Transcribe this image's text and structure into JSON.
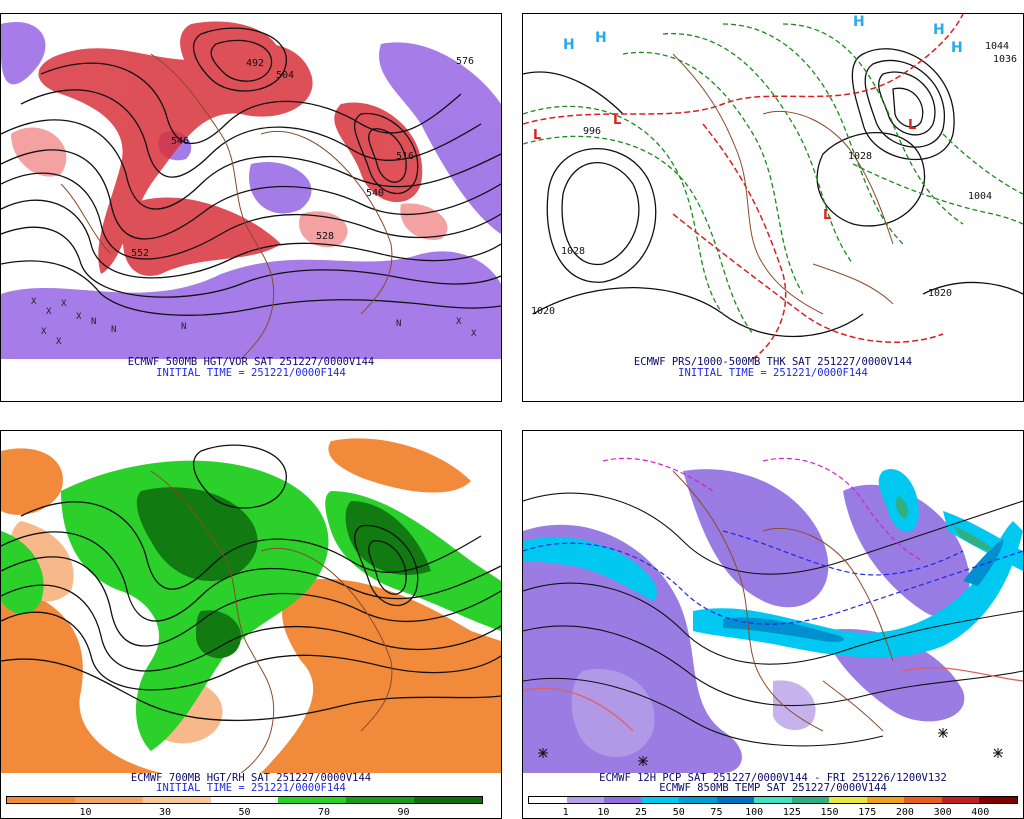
{
  "panels": {
    "top_left": {
      "line1": "ECMWF 500MB HGT/VOR SAT 251227/0000V144",
      "line2": "INITIAL TIME = 251221/0000F144",
      "contour_labels": [
        "576",
        "528",
        "546",
        "552",
        "492",
        "504",
        "540",
        "516"
      ]
    },
    "top_right": {
      "line1": "ECMWF PRS/1000-500MB THK SAT 251227/0000V144",
      "line2": "INITIAL TIME = 251221/0000F144",
      "contour_labels": [
        "1028",
        "1020",
        "1028",
        "1004",
        "1020",
        "1036",
        "996",
        "1044"
      ]
    },
    "bottom_left": {
      "line1": "ECMWF 700MB HGT/RH SAT 251227/0000V144",
      "line2": "INITIAL TIME = 251221/0000F144",
      "colorbar": {
        "colors": [
          "#f28a3c",
          "#f5a468",
          "#f7c79e",
          "#ffffff",
          "#2bd02b",
          "#1a9c1a",
          "#0f6e0f"
        ],
        "ticks": [
          "10",
          "30",
          "50",
          "70",
          "90"
        ]
      }
    },
    "bottom_right": {
      "line1": "ECMWF 12H PCP SAT 251227/0000V144 - FRI 251226/1200V132",
      "line2": "ECMWF 850MB TEMP SAT 251227/0000V144",
      "colorbar": {
        "colors": [
          "#ffffff",
          "#b8a0e8",
          "#8f6ee0",
          "#00c8f0",
          "#009ed8",
          "#0070c0",
          "#40e0c0",
          "#30b080",
          "#e8e840",
          "#f0a020",
          "#e86020",
          "#c02020",
          "#800000"
        ],
        "ticks": [
          "1",
          "10",
          "25",
          "50",
          "75",
          "100",
          "125",
          "150",
          "175",
          "200",
          "300",
          "400"
        ]
      }
    }
  }
}
